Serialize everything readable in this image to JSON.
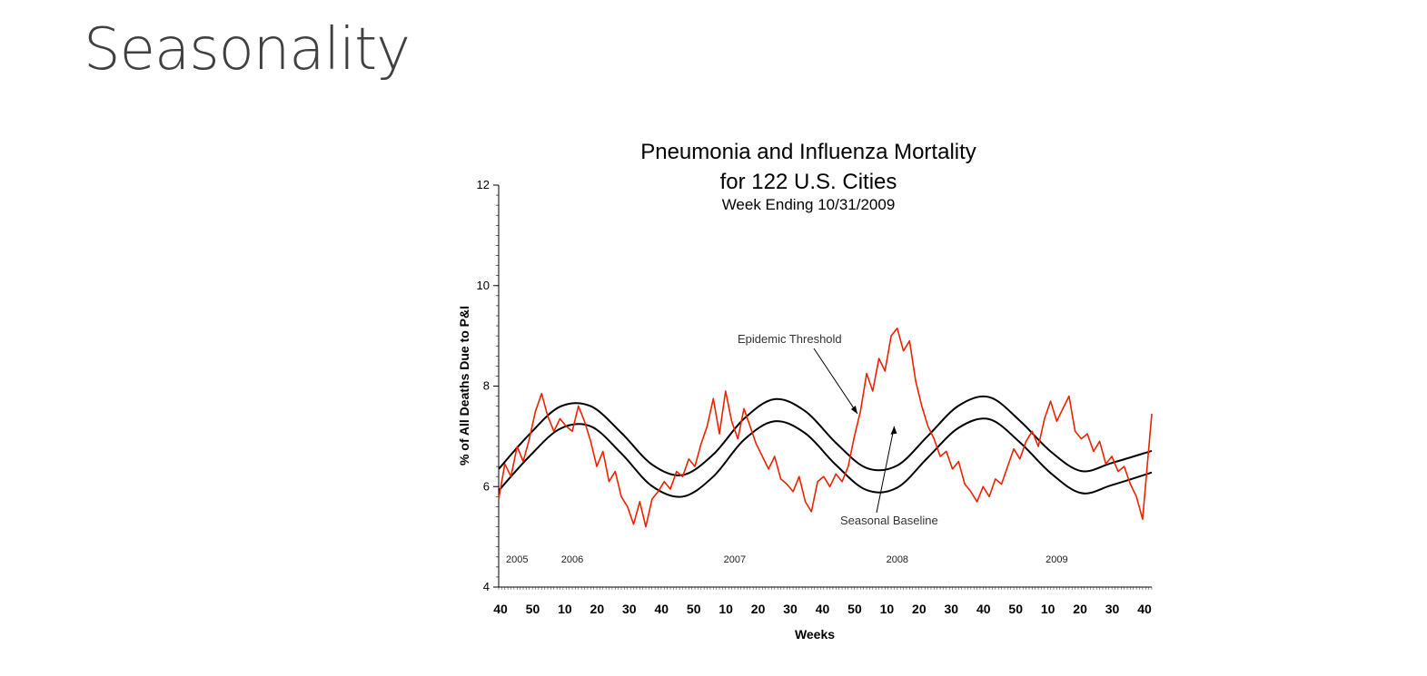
{
  "slide": {
    "title": "Seasonality"
  },
  "chart_data": {
    "type": "line",
    "title": "Pneumonia and Influenza Mortality",
    "title_line2": "for 122 U.S. Cities",
    "subtitle": "Week Ending 10/31/2009",
    "xlabel": "Weeks",
    "ylabel": "% of All Deaths Due to P&I",
    "ylim": [
      4,
      12
    ],
    "y_ticks": [
      4,
      6,
      8,
      10,
      12
    ],
    "x_ticks": [
      "40",
      "50",
      "10",
      "20",
      "30",
      "40",
      "50",
      "10",
      "20",
      "30",
      "40",
      "50",
      "10",
      "20",
      "30",
      "40",
      "50",
      "10",
      "20",
      "30",
      "40"
    ],
    "year_labels": [
      {
        "label": "2005",
        "week_index": 6
      },
      {
        "label": "2006",
        "week_index": 24
      },
      {
        "label": "2007",
        "week_index": 77
      },
      {
        "label": "2008",
        "week_index": 130
      },
      {
        "label": "2009",
        "week_index": 182
      }
    ],
    "annotations": [
      {
        "text": "Epidemic Threshold",
        "target_week_index": 117,
        "target_value": 7.45
      },
      {
        "text": "Seasonal Baseline",
        "target_week_index": 129,
        "target_value": 7.2
      }
    ],
    "x_range_weeks": [
      0,
      213
    ],
    "series": [
      {
        "role": "threshold",
        "color": "#000000",
        "x": [
          0,
          10,
          20,
          30,
          40,
          50,
          60,
          70,
          80,
          90,
          100,
          110,
          120,
          130,
          140,
          150,
          160,
          170,
          180,
          190,
          200,
          213
        ],
        "values": [
          6.35,
          7.04,
          7.59,
          7.6,
          7.07,
          6.44,
          6.23,
          6.64,
          7.35,
          7.74,
          7.5,
          6.87,
          6.37,
          6.42,
          7.01,
          7.61,
          7.78,
          7.31,
          6.7,
          6.31,
          6.47,
          6.71
        ]
      },
      {
        "role": "baseline",
        "color": "#000000",
        "x": [
          0,
          10,
          20,
          30,
          40,
          50,
          60,
          70,
          80,
          90,
          100,
          110,
          120,
          130,
          140,
          150,
          160,
          170,
          180,
          190,
          200,
          213
        ],
        "values": [
          5.92,
          6.6,
          7.15,
          7.2,
          6.66,
          6.01,
          5.8,
          6.2,
          6.93,
          7.3,
          7.06,
          6.43,
          5.93,
          5.98,
          6.58,
          7.17,
          7.34,
          6.88,
          6.27,
          5.87,
          6.03,
          6.28
        ]
      },
      {
        "role": "observed",
        "color": "#ee2200",
        "x": [
          0,
          2,
          4,
          6,
          8,
          10,
          12,
          14,
          16,
          18,
          20,
          22,
          24,
          26,
          28,
          30,
          32,
          34,
          36,
          38,
          40,
          42,
          44,
          46,
          48,
          50,
          52,
          54,
          56,
          58,
          60,
          62,
          64,
          66,
          68,
          70,
          72,
          74,
          76,
          78,
          80,
          82,
          84,
          86,
          88,
          90,
          92,
          94,
          96,
          98,
          100,
          102,
          104,
          106,
          108,
          110,
          112,
          114,
          116,
          118,
          120,
          122,
          124,
          126,
          128,
          130,
          132,
          134,
          136,
          138,
          140,
          142,
          144,
          146,
          148,
          150,
          152,
          154,
          156,
          158,
          160,
          162,
          164,
          166,
          168,
          170,
          172,
          174,
          176,
          178,
          180,
          182,
          184,
          186,
          188,
          190,
          192,
          194,
          196,
          198,
          200,
          202,
          204,
          206,
          208,
          210,
          213
        ],
        "values": [
          5.75,
          6.45,
          6.2,
          6.8,
          6.5,
          6.95,
          7.5,
          7.85,
          7.4,
          7.1,
          7.35,
          7.2,
          7.1,
          7.6,
          7.3,
          6.9,
          6.4,
          6.7,
          6.1,
          6.3,
          5.8,
          5.6,
          5.25,
          5.7,
          5.2,
          5.75,
          5.9,
          6.1,
          5.95,
          6.3,
          6.2,
          6.55,
          6.4,
          6.85,
          7.2,
          7.75,
          7.05,
          7.9,
          7.3,
          6.95,
          7.55,
          7.2,
          6.85,
          6.6,
          6.35,
          6.6,
          6.15,
          6.05,
          5.9,
          6.2,
          5.7,
          5.5,
          6.1,
          6.2,
          6.0,
          6.25,
          6.1,
          6.4,
          7.0,
          7.5,
          8.25,
          7.9,
          8.55,
          8.3,
          9.0,
          9.15,
          8.7,
          8.9,
          8.1,
          7.6,
          7.2,
          6.95,
          6.6,
          6.7,
          6.35,
          6.5,
          6.05,
          5.9,
          5.7,
          6.0,
          5.8,
          6.15,
          6.05,
          6.4,
          6.75,
          6.55,
          6.9,
          7.1,
          6.8,
          7.35,
          7.7,
          7.3,
          7.55,
          7.8,
          7.1,
          6.95,
          7.05,
          6.7,
          6.9,
          6.45,
          6.6,
          6.3,
          6.4,
          6.05,
          5.8,
          5.35,
          7.45
        ]
      }
    ]
  }
}
